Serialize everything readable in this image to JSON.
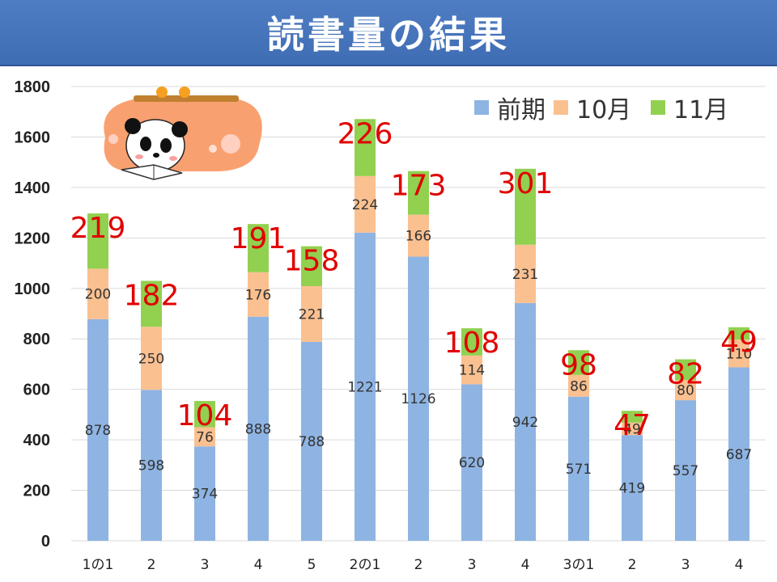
{
  "title": "読書量の結果",
  "chart_data": {
    "type": "bar",
    "stacked": true,
    "categories": [
      "1の1",
      "2",
      "3",
      "4",
      "5",
      "2の1",
      "2",
      "3",
      "4",
      "3の1",
      "2",
      "3",
      "4"
    ],
    "series": [
      {
        "name": "前期",
        "color": "#8eb4e3",
        "values": [
          878,
          598,
          374,
          888,
          788,
          1221,
          1126,
          620,
          942,
          571,
          419,
          557,
          687
        ]
      },
      {
        "name": "10月",
        "color": "#fac090",
        "values": [
          200,
          250,
          76,
          176,
          221,
          224,
          166,
          114,
          231,
          86,
          49,
          80,
          110
        ]
      },
      {
        "name": "11月",
        "color": "#92d050",
        "values": [
          219,
          182,
          104,
          191,
          158,
          226,
          173,
          108,
          301,
          98,
          47,
          82,
          49
        ]
      }
    ],
    "ylim": [
      0,
      1800
    ],
    "yticks": [
      0,
      200,
      400,
      600,
      800,
      1000,
      1200,
      1400,
      1600,
      1800
    ],
    "grid": true,
    "legend": "top-right",
    "top_label_color": "#e00000"
  }
}
